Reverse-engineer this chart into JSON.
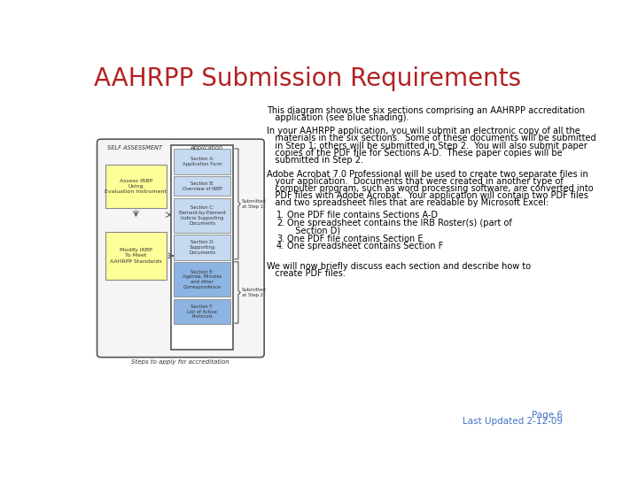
{
  "title": "AAHRPP Submission Requirements",
  "title_color": "#b22222",
  "title_fontsize": 20,
  "bg_color": "#ffffff",
  "subtitle_line1": "This diagram shows the six sections comprising an AAHRPP accreditation",
  "subtitle_line2": "   application (see blue shading).",
  "para1_line1": "In your AAHRPP application, you will submit an electronic copy of all the",
  "para1_line2": "   materials in the six sections.  Some of these documents will be submitted",
  "para1_line3": "   in Step 1; others will be submitted in Step 2.  You will also submit paper",
  "para1_line4": "   copies of the PDF file for Sections A-D.  These paper copies will be",
  "para1_line5": "   submitted in Step 2.",
  "para2_line1": "Adobe Acrobat 7.0 Professional will be used to create two separate files in",
  "para2_line2": "   your application.  Documents that were created in another type of",
  "para2_line3": "   computer program, such as word processing software, are converted into",
  "para2_line4": "   PDF files with Adobe Acrobat.  Your application will contain two PDF files",
  "para2_line5": "   and two spreadsheet files that are readable by Microsoft Excel:",
  "list_items": [
    "One PDF file contains Sections A-D",
    "One spreadsheet contains the IRB Roster(s) (part of",
    "   Section D)",
    "One PDF file contains Section E",
    "One spreadsheet contains Section F"
  ],
  "list_numbers": [
    "1.",
    "2.",
    "",
    "3.",
    "4."
  ],
  "para3_line1": "We will now briefly discuss each section and describe how to",
  "para3_line2": "   create PDF files.",
  "footer1": "Page 6",
  "footer2": "Last Updated 2-12-09",
  "diagram_label_left": "SELF ASSESSMENT",
  "diagram_label_right": "Application",
  "diagram_caption": "Steps to apply for accreditation",
  "sections": [
    "Section A:\nApplication Form",
    "Section B:\nOverview of IRBP",
    "Section C:\nElement-by-Element\nIndicia Supporting\nDocuments",
    "Section D:\nSupporting\nDocuments",
    "Section E:\nAgenda, Minutes\nand other\nCorrespondence",
    "Section F:\nList of Active\nProtocols"
  ],
  "section_blue_color": "#c5d9f1",
  "section_gray_color": "#8db4e2",
  "left_box1_text": "Assess IRBP\nUsing\nEvaluation Instrument",
  "left_box2_text": "Modify IRBP\nTo Meet\nAAHRPP Standards",
  "left_box_color": "#ffff99",
  "step1_label": "Submitted\nat Step 1",
  "step2_label": "Submitted\nat Step 2",
  "body_fontsize": 7.0,
  "diagram_fontsize": 4.5,
  "footer_color": "#4472c4",
  "body_color": "#000000",
  "diagram_text_color": "#333333"
}
